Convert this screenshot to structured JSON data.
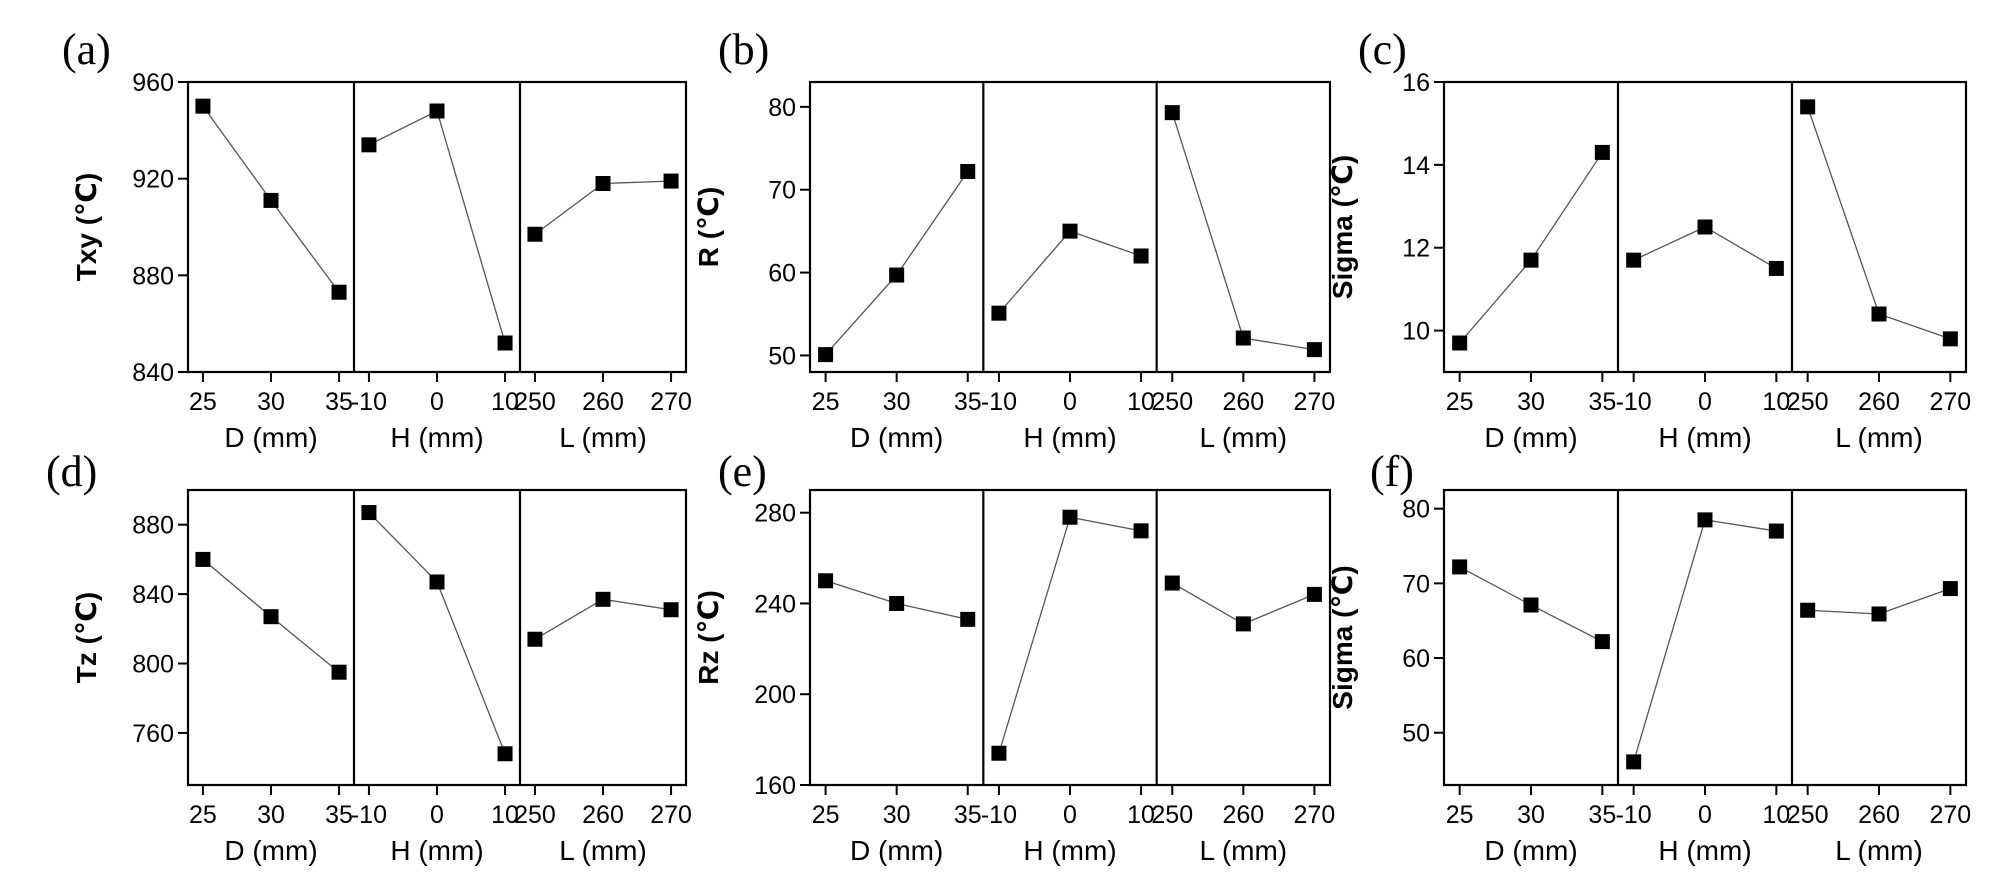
{
  "figure": {
    "panels": [
      "(a)",
      "(b)",
      "(c)",
      "(d)",
      "(e)",
      "(f)"
    ]
  },
  "chart_data": [
    {
      "type": "line",
      "panel_label": "(a)",
      "ylabel": "Txy (℃)",
      "ylim": [
        840,
        960
      ],
      "yticks": [
        "840",
        "880",
        "920",
        "960"
      ],
      "groups": [
        {
          "xlabel": "D (mm)",
          "categories": [
            "25",
            "30",
            "35"
          ],
          "values": [
            950,
            911,
            873
          ]
        },
        {
          "xlabel": "H (mm)",
          "categories": [
            "-10",
            "0",
            "10"
          ],
          "values": [
            934,
            948,
            852
          ]
        },
        {
          "xlabel": "L (mm)",
          "categories": [
            "250",
            "260",
            "270"
          ],
          "values": [
            897,
            918,
            919
          ]
        }
      ]
    },
    {
      "type": "line",
      "panel_label": "(b)",
      "ylabel": "R (℃)",
      "ylim": [
        48,
        83
      ],
      "yticks": [
        "50",
        "60",
        "70",
        "80"
      ],
      "groups": [
        {
          "xlabel": "D (mm)",
          "categories": [
            "25",
            "30",
            "35"
          ],
          "values": [
            50.1,
            59.7,
            72.2
          ]
        },
        {
          "xlabel": "H (mm)",
          "categories": [
            "-10",
            "0",
            "10"
          ],
          "values": [
            55.1,
            65.0,
            62.0
          ]
        },
        {
          "xlabel": "L (mm)",
          "categories": [
            "250",
            "260",
            "270"
          ],
          "values": [
            79.3,
            52.1,
            50.7
          ]
        }
      ]
    },
    {
      "type": "line",
      "panel_label": "(c)",
      "ylabel": "Sigma (℃)",
      "ylim": [
        9,
        16
      ],
      "yticks": [
        "10",
        "12",
        "14",
        "16"
      ],
      "groups": [
        {
          "xlabel": "D (mm)",
          "categories": [
            "25",
            "30",
            "35"
          ],
          "values": [
            9.7,
            11.7,
            14.3
          ]
        },
        {
          "xlabel": "H (mm)",
          "categories": [
            "-10",
            "0",
            "10"
          ],
          "values": [
            11.7,
            12.5,
            11.5
          ]
        },
        {
          "xlabel": "L (mm)",
          "categories": [
            "250",
            "260",
            "270"
          ],
          "values": [
            15.4,
            10.4,
            9.8
          ]
        }
      ]
    },
    {
      "type": "line",
      "panel_label": "(d)",
      "ylabel": "Tz (℃)",
      "ylim": [
        730,
        900
      ],
      "yticks": [
        "760",
        "800",
        "840",
        "880"
      ],
      "groups": [
        {
          "xlabel": "D (mm)",
          "categories": [
            "25",
            "30",
            "35"
          ],
          "values": [
            860,
            827,
            795
          ]
        },
        {
          "xlabel": "H (mm)",
          "categories": [
            "-10",
            "0",
            "10"
          ],
          "values": [
            887,
            847,
            748
          ]
        },
        {
          "xlabel": "L (mm)",
          "categories": [
            "250",
            "260",
            "270"
          ],
          "values": [
            814,
            837,
            831
          ]
        }
      ]
    },
    {
      "type": "line",
      "panel_label": "(e)",
      "ylabel": "Rz (℃)",
      "ylim": [
        160,
        290
      ],
      "yticks": [
        "160",
        "200",
        "240",
        "280"
      ],
      "groups": [
        {
          "xlabel": "D (mm)",
          "categories": [
            "25",
            "30",
            "35"
          ],
          "values": [
            250,
            240,
            233
          ]
        },
        {
          "xlabel": "H (mm)",
          "categories": [
            "-10",
            "0",
            "10"
          ],
          "values": [
            174,
            278,
            272
          ]
        },
        {
          "xlabel": "L (mm)",
          "categories": [
            "250",
            "260",
            "270"
          ],
          "values": [
            249,
            231,
            244
          ]
        }
      ]
    },
    {
      "type": "line",
      "panel_label": "(f)",
      "ylabel": "Sigma (℃)",
      "ylim": [
        43,
        82.5
      ],
      "yticks": [
        "50",
        "60",
        "70",
        "80"
      ],
      "groups": [
        {
          "xlabel": "D (mm)",
          "categories": [
            "25",
            "30",
            "35"
          ],
          "values": [
            72.2,
            67.1,
            62.2
          ]
        },
        {
          "xlabel": "H (mm)",
          "categories": [
            "-10",
            "0",
            "10"
          ],
          "values": [
            46.1,
            78.5,
            77.0
          ]
        },
        {
          "xlabel": "L (mm)",
          "categories": [
            "250",
            "260",
            "270"
          ],
          "values": [
            66.4,
            65.9,
            69.3
          ]
        }
      ]
    }
  ]
}
